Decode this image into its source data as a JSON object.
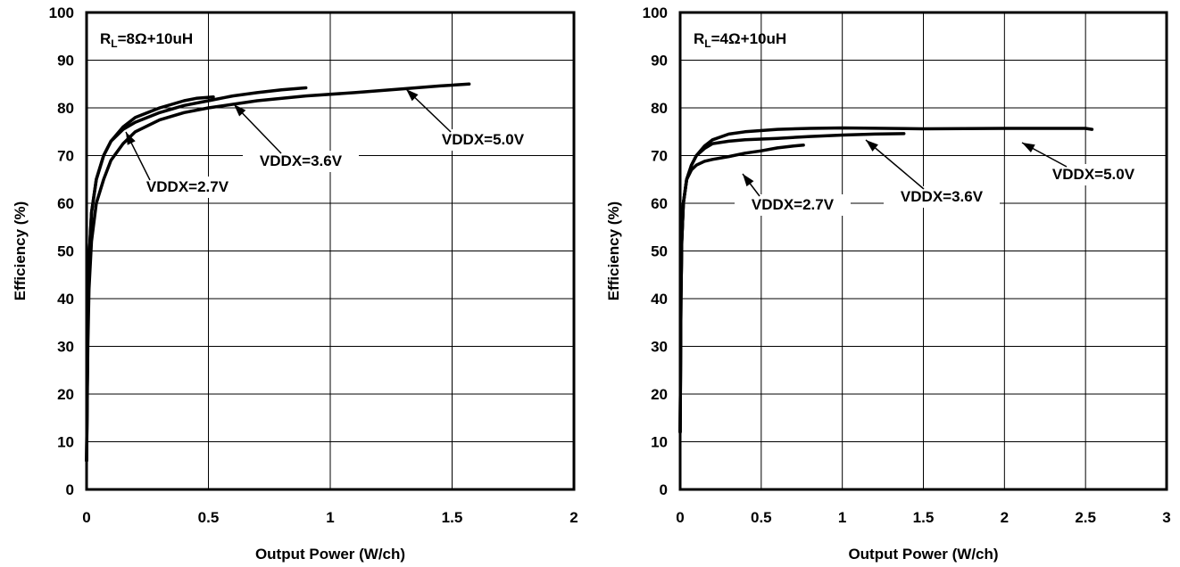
{
  "chart_data": [
    {
      "type": "line",
      "title": "",
      "xlabel": "Output Power (W/ch)",
      "ylabel": "Efficiency (%)",
      "xlim": [
        0,
        2
      ],
      "ylim": [
        0,
        100
      ],
      "x_ticks": [
        "0",
        "0.5",
        "1",
        "1.5",
        "2"
      ],
      "y_ticks": [
        "0",
        "10",
        "20",
        "30",
        "40",
        "50",
        "60",
        "70",
        "80",
        "90",
        "100"
      ],
      "grid": true,
      "condition_label": {
        "main": "R",
        "sub": "L",
        "rest": "=8Ω+10uH"
      },
      "series": [
        {
          "name": "VDDX=2.7V",
          "x": [
            0,
            0.005,
            0.01,
            0.02,
            0.04,
            0.07,
            0.1,
            0.15,
            0.2,
            0.3,
            0.4,
            0.45,
            0.52
          ],
          "y": [
            6,
            35,
            48,
            58,
            65,
            70,
            73,
            76,
            78,
            80,
            81.5,
            82,
            82.3
          ]
        },
        {
          "name": "VDDX=3.6V",
          "x": [
            0,
            0.005,
            0.01,
            0.02,
            0.04,
            0.07,
            0.1,
            0.15,
            0.2,
            0.3,
            0.4,
            0.5,
            0.6,
            0.7,
            0.8,
            0.9
          ],
          "y": [
            6,
            35,
            48,
            58,
            65,
            70,
            73,
            75.5,
            77,
            79,
            80.5,
            81.5,
            82.5,
            83.2,
            83.8,
            84.2
          ]
        },
        {
          "name": "VDDX=5.0V",
          "x": [
            0,
            0.005,
            0.01,
            0.02,
            0.04,
            0.07,
            0.1,
            0.15,
            0.2,
            0.3,
            0.4,
            0.5,
            0.7,
            0.9,
            1.1,
            1.3,
            1.45,
            1.57
          ],
          "y": [
            6,
            30,
            42,
            52,
            60,
            65,
            69,
            72.5,
            75,
            77.5,
            79,
            80,
            81.5,
            82.5,
            83.2,
            84,
            84.6,
            85
          ]
        }
      ],
      "annotations": [
        {
          "text": "VDDX=2.7V",
          "series": 0,
          "x": 0.17,
          "y": 63
        },
        {
          "text": "VDDX=3.6V",
          "series": 1,
          "x": 0.67,
          "y": 71
        },
        {
          "text": "VDDX=5.0V",
          "series": 2,
          "x": 1.55,
          "y": 72
        }
      ]
    },
    {
      "type": "line",
      "title": "",
      "xlabel": "Output Power (W/ch)",
      "ylabel": "Efficiency (%)",
      "xlim": [
        0,
        3
      ],
      "ylim": [
        0,
        100
      ],
      "x_ticks": [
        "0",
        "0.5",
        "1",
        "1.5",
        "2",
        "2.5",
        "3"
      ],
      "y_ticks": [
        "0",
        "10",
        "20",
        "30",
        "40",
        "50",
        "60",
        "70",
        "80",
        "90",
        "100"
      ],
      "grid": true,
      "condition_label": {
        "main": "R",
        "sub": "L",
        "rest": "=4Ω+10uH"
      },
      "series": [
        {
          "name": "VDDX=2.7V",
          "x": [
            0,
            0.005,
            0.01,
            0.02,
            0.04,
            0.07,
            0.1,
            0.15,
            0.2,
            0.3,
            0.4,
            0.5,
            0.6,
            0.7,
            0.76
          ],
          "y": [
            12,
            40,
            52,
            60,
            65,
            67,
            68,
            68.8,
            69.2,
            69.8,
            70.5,
            71,
            71.6,
            72,
            72.2
          ]
        },
        {
          "name": "VDDX=3.6V",
          "x": [
            0,
            0.005,
            0.01,
            0.02,
            0.04,
            0.07,
            0.1,
            0.15,
            0.2,
            0.3,
            0.4,
            0.6,
            0.8,
            1.0,
            1.2,
            1.38
          ],
          "y": [
            12,
            40,
            52,
            60,
            65,
            68,
            70,
            71.5,
            72.5,
            73,
            73.3,
            73.6,
            74,
            74.3,
            74.5,
            74.6
          ]
        },
        {
          "name": "VDDX=5.0V",
          "x": [
            0,
            0.005,
            0.01,
            0.02,
            0.04,
            0.07,
            0.1,
            0.15,
            0.2,
            0.3,
            0.4,
            0.6,
            0.8,
            1.0,
            1.5,
            2.0,
            2.5,
            2.54
          ],
          "y": [
            12,
            40,
            52,
            60,
            65,
            68,
            70,
            72,
            73.3,
            74.5,
            75,
            75.5,
            75.7,
            75.8,
            75.6,
            75.7,
            75.7,
            75.5
          ]
        }
      ],
      "annotations": [
        {
          "text": "VDDX=2.7V",
          "series": 0,
          "x": 0.35,
          "y": 70.5
        },
        {
          "text": "VDDX=3.6V",
          "series": 1,
          "x": 1.1,
          "y": 74.5
        },
        {
          "text": "VDDX=5.0V",
          "series": 2,
          "x": 2.2,
          "y": 75.7
        }
      ]
    }
  ]
}
